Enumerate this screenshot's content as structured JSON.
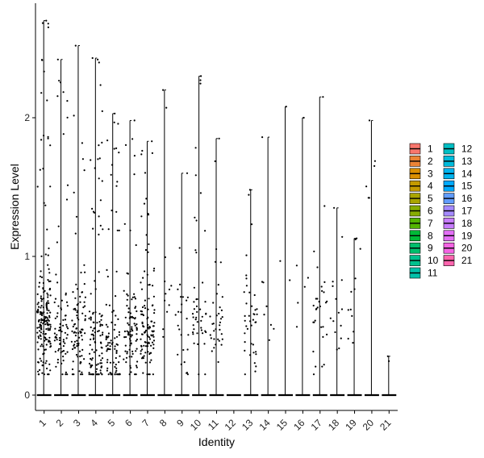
{
  "chart_data": {
    "type": "violin",
    "xlabel": "Identity",
    "ylabel": "Expression Level",
    "categories": [
      "1",
      "2",
      "3",
      "4",
      "5",
      "6",
      "7",
      "8",
      "9",
      "10",
      "11",
      "12",
      "13",
      "14",
      "15",
      "16",
      "17",
      "18",
      "19",
      "20",
      "21"
    ],
    "yticks": [
      0,
      1,
      2
    ],
    "ylim": [
      -0.12,
      2.83
    ],
    "max_values": [
      2.7,
      2.42,
      2.52,
      2.43,
      2.03,
      1.98,
      1.83,
      2.2,
      1.6,
      2.3,
      1.85,
      0,
      1.48,
      1.86,
      2.08,
      2.0,
      2.15,
      1.35,
      1.13,
      1.98,
      0.28
    ],
    "legend": {
      "position": "right",
      "items": [
        {
          "label": "1",
          "color": "#F8766D"
        },
        {
          "label": "2",
          "color": "#EB8335"
        },
        {
          "label": "3",
          "color": "#DA8F00"
        },
        {
          "label": "4",
          "color": "#C49A00"
        },
        {
          "label": "5",
          "color": "#A9A400"
        },
        {
          "label": "6",
          "color": "#86AC00"
        },
        {
          "label": "7",
          "color": "#53B400"
        },
        {
          "label": "8",
          "color": "#00BA38"
        },
        {
          "label": "9",
          "color": "#00BE6C"
        },
        {
          "label": "10",
          "color": "#00C08D"
        },
        {
          "label": "11",
          "color": "#00C1A9"
        },
        {
          "label": "12",
          "color": "#00BFC4"
        },
        {
          "label": "13",
          "color": "#00BBDB"
        },
        {
          "label": "14",
          "color": "#00B4EF"
        },
        {
          "label": "15",
          "color": "#00A9FF"
        },
        {
          "label": "16",
          "color": "#619CFF"
        },
        {
          "label": "17",
          "color": "#A58AFF"
        },
        {
          "label": "18",
          "color": "#C77CFF"
        },
        {
          "label": "19",
          "color": "#E36EF6"
        },
        {
          "label": "20",
          "color": "#F564E3"
        },
        {
          "label": "21",
          "color": "#FF65AE"
        }
      ]
    }
  }
}
